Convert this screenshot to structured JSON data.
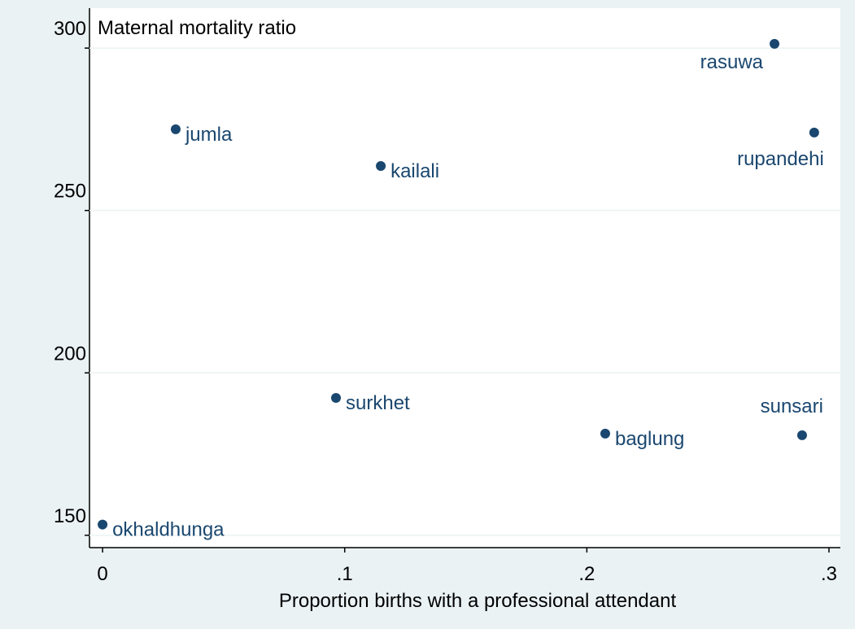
{
  "chart_data": {
    "type": "scatter",
    "ylabel": "Maternal mortality ratio",
    "xlabel": "Proportion births with a professional attendant",
    "series": [
      {
        "color": "#1a476f",
        "labels": [
          "okhaldhunga",
          "jumla",
          "kailali",
          "surkhet",
          "baglung",
          "sunsari",
          "rasuwa",
          "rupandehi"
        ],
        "x": [
          0,
          0.0302,
          0.1149,
          0.0964,
          0.2076,
          0.2889,
          0.2775,
          0.2939
        ],
        "values": [
          153.3,
          275.0,
          263.7,
          192.3,
          181.3,
          180.8,
          301.3,
          274.0
        ]
      }
    ],
    "xlim": [
      -0.0054,
      0.3047
    ],
    "ylim": [
      146.2,
      312.3
    ],
    "xticks": [
      0,
      {
        "value": 0.1,
        "label": ".1"
      },
      {
        "value": 0.2,
        "label": ".2"
      },
      {
        "value": 0.3,
        "label": ".3"
      }
    ],
    "yticks": [
      150,
      200,
      250,
      300
    ],
    "grid": true
  }
}
